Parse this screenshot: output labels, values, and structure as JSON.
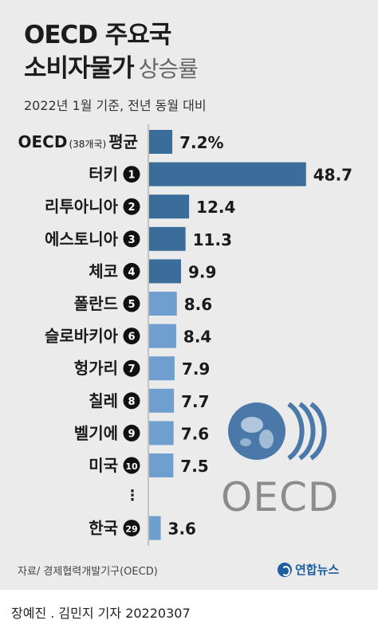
{
  "header": {
    "title_line1": "OECD 주요국",
    "title_line2_bold": "소비자물가",
    "title_line2_light": "상승률",
    "subtitle": "2022년 1월 기준, 전년 동월 대비"
  },
  "chart_data": {
    "type": "bar",
    "orientation": "horizontal",
    "categories": [
      "OECD 평균",
      "터키",
      "리투아니아",
      "에스토니아",
      "체코",
      "폴란드",
      "슬로바키아",
      "헝가리",
      "칠레",
      "벨기에",
      "미국",
      "한국"
    ],
    "category_notes": [
      "(38개국)",
      "",
      "",
      "",
      "",
      "",
      "",
      "",
      "",
      "",
      "",
      ""
    ],
    "ranks": [
      "",
      "1",
      "2",
      "3",
      "4",
      "5",
      "6",
      "7",
      "8",
      "9",
      "10",
      "29"
    ],
    "values": [
      7.2,
      48.7,
      12.4,
      11.3,
      9.9,
      8.6,
      8.4,
      7.9,
      7.7,
      7.6,
      7.5,
      3.6
    ],
    "value_labels": [
      "7.2%",
      "48.7",
      "12.4",
      "11.3",
      "9.9",
      "8.6",
      "8.4",
      "7.9",
      "7.7",
      "7.6",
      "7.5",
      "3.6"
    ],
    "xlim": [
      0,
      50
    ],
    "gap_after_index": 10,
    "gap_marker": "⋮",
    "colors": {
      "dark": "#3a6d9a",
      "light": "#6f9fcf",
      "badge": "#111111"
    },
    "dark_count": 5
  },
  "logo": {
    "text": "OECD",
    "text_color": "#8c8c8c",
    "globe_color": "#4a78a8"
  },
  "footer": {
    "source": "자료/ 경제협력개발기구(OECD)",
    "brand": "연합뉴스",
    "credit": "장예진 . 김민지 기자  20220307"
  }
}
